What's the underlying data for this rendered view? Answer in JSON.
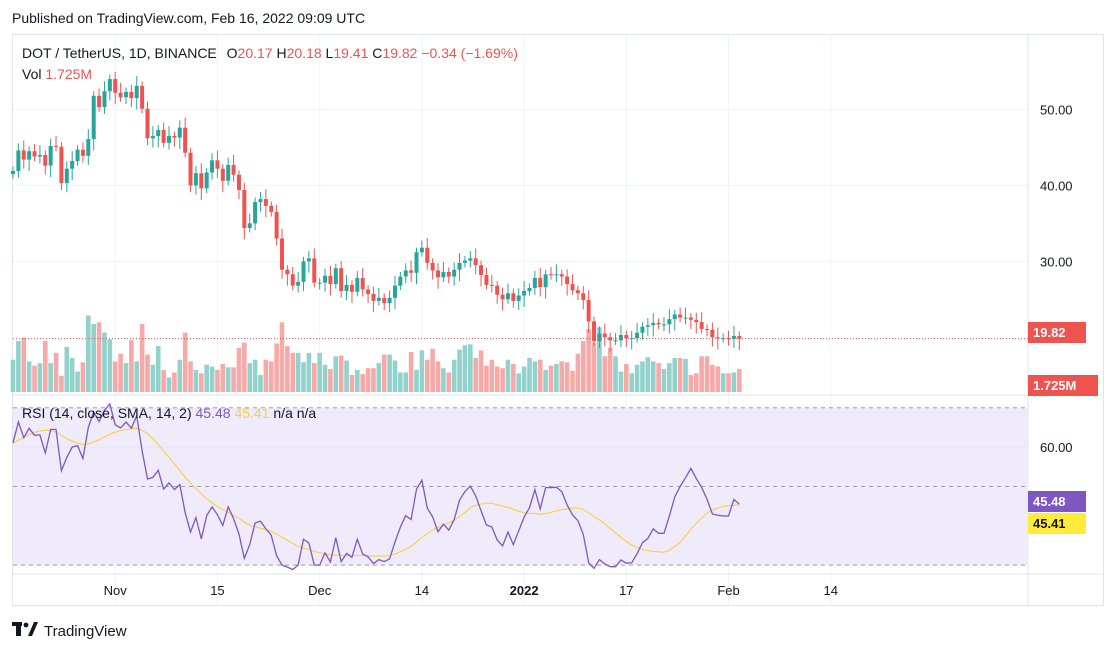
{
  "header": {
    "published": "Published on TradingView.com, Feb 16, 2022 09:09 UTC"
  },
  "legend": {
    "symbol": "DOT / TetherUS, 1D, BINANCE",
    "o_label": "O",
    "o": "20.17",
    "h_label": "H",
    "h": "20.18",
    "l_label": "L",
    "l": "19.41",
    "c_label": "C",
    "c": "19.82",
    "change": "−0.34 (−1.69%)",
    "vol_label": "Vol",
    "vol": "1.725M"
  },
  "rsi_legend": {
    "text": "RSI (14, close, SMA, 14, 2)",
    "rsi": "45.48",
    "sma": "45.41",
    "na1": "n/a",
    "na2": "n/a"
  },
  "labels": {
    "last_price": "19.82",
    "last_volume": "1.725M",
    "rsi_value": "45.48",
    "rsi_sma_value": "45.41"
  },
  "footer": {
    "brand": "TradingView",
    "logo": "tradingview-logo"
  },
  "colors": {
    "up": "#26a69a",
    "down": "#ef5350",
    "up_vol": "#92d2cc",
    "down_vol": "#f7a9a7",
    "rsi": "#7e57c2",
    "rsi_sma": "#f7d13d",
    "rsi_band": "#f0ebfb",
    "last_price": "#ef5350",
    "rsi_label_bg": "#7e57c2",
    "sma_label_bg": "#ffeb3b"
  },
  "chart_data": [
    {
      "type": "candlestick",
      "title": "DOT / TetherUS, 1D, BINANCE",
      "x_tick_labels": [
        "Nov",
        "15",
        "Dec",
        "14",
        "2022",
        "17",
        "Feb",
        "14"
      ],
      "x_tick_index": [
        19,
        38,
        57,
        76,
        95,
        114,
        133,
        152
      ],
      "y_ticks": [
        30,
        40,
        50
      ],
      "y_tick_labels": [
        "30.00",
        "40.00",
        "50.00"
      ],
      "ylim": [
        12.8,
        59.8
      ],
      "last_price": 19.82,
      "closes": [
        41.9,
        44.6,
        43.4,
        44.5,
        43.8,
        44.0,
        42.6,
        45.2,
        45.1,
        40.3,
        42.2,
        43.2,
        44.7,
        43.9,
        46.1,
        51.8,
        50.3,
        52.4,
        54.0,
        52.2,
        51.6,
        52.3,
        51.5,
        53.1,
        50.1,
        46.2,
        46.5,
        47.3,
        45.6,
        46.5,
        46.3,
        47.6,
        44.3,
        40.0,
        41.6,
        39.6,
        41.7,
        43.3,
        42.2,
        40.6,
        42.7,
        41.4,
        39.4,
        34.4,
        35.0,
        37.8,
        38.2,
        37.3,
        36.5,
        33.0,
        28.9,
        28.3,
        26.8,
        27.3,
        30.0,
        30.4,
        27.2,
        27.2,
        28.1,
        27.0,
        29.1,
        26.1,
        26.9,
        26.0,
        27.8,
        26.3,
        25.7,
        24.8,
        25.2,
        24.5,
        25.2,
        26.8,
        28.0,
        28.8,
        28.5,
        31.2,
        31.8,
        29.8,
        28.8,
        27.9,
        28.6,
        28.0,
        28.9,
        29.8,
        30.1,
        30.4,
        29.5,
        28.2,
        26.9,
        26.8,
        25.6,
        25.0,
        25.8,
        24.8,
        25.5,
        26.1,
        26.5,
        27.8,
        26.6,
        28.3,
        28.2,
        28.3,
        28.0,
        27.0,
        26.2,
        25.8,
        24.9,
        22.1,
        19.5,
        20.5,
        20.0,
        19.6,
        19.6,
        20.3,
        19.9,
        19.9,
        20.6,
        21.4,
        21.6,
        21.9,
        21.7,
        21.7,
        22.4,
        23.0,
        22.6,
        22.6,
        22.3,
        22.0,
        21.1,
        21.0,
        20.0,
        19.9,
        19.9,
        19.8,
        20.17,
        19.82
      ],
      "volumes_relative": [
        0.38,
        0.6,
        0.64,
        0.36,
        0.31,
        0.34,
        0.6,
        0.34,
        0.46,
        0.19,
        0.53,
        0.4,
        0.24,
        0.35,
        0.9,
        0.8,
        0.82,
        0.7,
        0.62,
        0.36,
        0.45,
        0.34,
        0.61,
        0.36,
        0.8,
        0.44,
        0.32,
        0.54,
        0.26,
        0.17,
        0.23,
        0.38,
        0.7,
        0.36,
        0.26,
        0.22,
        0.32,
        0.3,
        0.26,
        0.33,
        0.29,
        0.29,
        0.52,
        0.58,
        0.34,
        0.38,
        0.2,
        0.38,
        0.36,
        0.57,
        0.82,
        0.54,
        0.46,
        0.46,
        0.35,
        0.46,
        0.34,
        0.46,
        0.32,
        0.27,
        0.42,
        0.43,
        0.37,
        0.2,
        0.26,
        0.21,
        0.28,
        0.28,
        0.34,
        0.44,
        0.44,
        0.37,
        0.23,
        0.23,
        0.47,
        0.26,
        0.49,
        0.38,
        0.51,
        0.36,
        0.28,
        0.23,
        0.38,
        0.5,
        0.55,
        0.56,
        0.4,
        0.49,
        0.31,
        0.38,
        0.3,
        0.28,
        0.38,
        0.33,
        0.22,
        0.3,
        0.4,
        0.36,
        0.38,
        0.26,
        0.31,
        0.33,
        0.36,
        0.35,
        0.25,
        0.45,
        0.6,
        0.74,
        0.58,
        0.76,
        0.42,
        0.52,
        0.42,
        0.24,
        0.33,
        0.22,
        0.32,
        0.36,
        0.41,
        0.36,
        0.34,
        0.27,
        0.34,
        0.4,
        0.4,
        0.39,
        0.2,
        0.22,
        0.42,
        0.42,
        0.32,
        0.3,
        0.22,
        0.22,
        0.23,
        0.27,
        0.07
      ]
    },
    {
      "type": "line",
      "title": "RSI (14, close, SMA, 14, 2)",
      "y_ticks": [
        60
      ],
      "y_tick_labels": [
        "60.00"
      ],
      "ylim": [
        28,
        73
      ],
      "upper_band": 70,
      "lower_band": 30,
      "middle_band": 50,
      "series": [
        {
          "name": "RSI",
          "color": "#7e57c2",
          "values": [
            61.1,
            66.4,
            62.4,
            64.8,
            63.0,
            63.1,
            58.5,
            64.5,
            64.5,
            54.0,
            57.4,
            60.0,
            60.4,
            57.1,
            65.0,
            69.0,
            66.5,
            69.4,
            71.0,
            65.7,
            64.9,
            66.4,
            64.8,
            68.0,
            59.1,
            51.9,
            52.3,
            54.1,
            49.3,
            50.9,
            49.2,
            50.5,
            43.3,
            38.4,
            42.1,
            36.7,
            42.6,
            44.8,
            42.8,
            40.1,
            44.8,
            41.8,
            37.9,
            31.7,
            35.2,
            40.7,
            41.2,
            39.2,
            37.6,
            32.4,
            30.0,
            29.5,
            28.9,
            30.0,
            36.6,
            35.6,
            30.0,
            30.0,
            33.1,
            30.8,
            37.0,
            30.9,
            33.0,
            32.0,
            36.6,
            32.8,
            32.1,
            30.4,
            31.4,
            30.9,
            31.6,
            35.9,
            39.7,
            42.6,
            41.6,
            49.3,
            51.6,
            44.5,
            42.3,
            38.5,
            40.4,
            38.9,
            41.6,
            46.5,
            48.7,
            50.1,
            47.6,
            43.8,
            40.2,
            39.7,
            36.4,
            34.9,
            38.4,
            35.2,
            38.7,
            42.2,
            44.6,
            49.2,
            44.3,
            49.7,
            49.7,
            49.8,
            48.7,
            45.3,
            42.8,
            41.3,
            37.8,
            30.6,
            29.2,
            31.4,
            30.3,
            29.6,
            29.6,
            31.3,
            30.5,
            30.6,
            32.9,
            35.7,
            36.8,
            39.2,
            38.1,
            38.1,
            42.5,
            47.3,
            50.0,
            52.2,
            54.6,
            52.0,
            49.8,
            46.8,
            43.0,
            42.7,
            42.5,
            42.5,
            46.7,
            45.48
          ]
        },
        {
          "name": "RSI-based MA",
          "color": "#f7d13d",
          "values": [
            61.0,
            61.8,
            62.5,
            63.2,
            63.8,
            64.1,
            64.3,
            64.2,
            63.8,
            63.0,
            62.2,
            61.5,
            61.0,
            60.7,
            60.8,
            61.3,
            61.9,
            62.6,
            63.3,
            63.8,
            64.2,
            64.5,
            64.7,
            64.8,
            64.3,
            63.4,
            62.1,
            60.6,
            59.0,
            57.4,
            55.7,
            54.0,
            52.3,
            50.8,
            49.5,
            48.1,
            46.8,
            45.8,
            44.9,
            44.1,
            43.4,
            42.7,
            41.9,
            40.9,
            40.2,
            39.8,
            39.4,
            39.0,
            38.6,
            37.9,
            37.1,
            36.3,
            35.5,
            34.8,
            34.3,
            34.0,
            33.5,
            33.1,
            32.9,
            32.6,
            32.6,
            32.5,
            32.4,
            32.4,
            32.5,
            32.5,
            32.4,
            32.3,
            32.3,
            32.3,
            32.4,
            32.8,
            33.4,
            34.0,
            34.8,
            35.9,
            37.1,
            38.0,
            38.9,
            39.6,
            40.2,
            40.7,
            41.4,
            42.3,
            43.4,
            44.6,
            45.2,
            45.5,
            45.8,
            45.7,
            45.4,
            45.0,
            44.7,
            44.2,
            43.7,
            43.3,
            43.1,
            43.2,
            42.9,
            43.1,
            43.4,
            43.8,
            44.1,
            44.3,
            44.5,
            44.5,
            44.1,
            43.3,
            42.4,
            41.5,
            40.5,
            39.3,
            38.2,
            37.1,
            36.0,
            35.1,
            34.5,
            34.0,
            33.7,
            33.5,
            33.4,
            33.3,
            33.8,
            34.7,
            35.8,
            37.4,
            39.1,
            40.6,
            42.0,
            43.2,
            44.0,
            44.5,
            44.9,
            45.1,
            45.2,
            45.41
          ]
        }
      ]
    }
  ]
}
